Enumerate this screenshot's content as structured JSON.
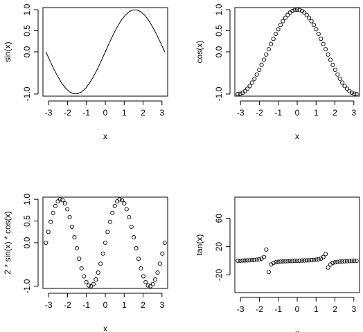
{
  "chart_data": [
    {
      "type": "line",
      "function": "sin(x)",
      "xlabel": "x",
      "ylabel": "sin(x)",
      "xlim": [
        -3.3,
        3.3
      ],
      "ylim": [
        -1.05,
        1.05
      ],
      "xticks": [
        "-3",
        "-2",
        "-1",
        "0",
        "1",
        "2",
        "3"
      ],
      "yticks": [
        "-1.0",
        "0.0",
        "0.5",
        "1.0"
      ],
      "x": [
        -3.14159,
        -2.93216,
        -2.72272,
        -2.51327,
        -2.30383,
        -2.09439,
        -1.88496,
        -1.67552,
        -1.46608,
        -1.25664,
        -1.0472,
        -0.83776,
        -0.62832,
        -0.41888,
        -0.20944,
        0.0,
        0.20944,
        0.41888,
        0.62832,
        0.83776,
        1.0472,
        1.25664,
        1.46608,
        1.67552,
        1.88496,
        2.09439,
        2.30383,
        2.51327,
        2.72272,
        2.93216,
        3.14159
      ],
      "y": [
        0.0,
        -0.208,
        -0.407,
        -0.588,
        -0.743,
        -0.866,
        -0.951,
        -0.995,
        -0.995,
        -0.951,
        -0.866,
        -0.743,
        -0.588,
        -0.407,
        -0.208,
        0.0,
        0.208,
        0.407,
        0.588,
        0.743,
        0.866,
        0.951,
        0.995,
        0.995,
        0.951,
        0.866,
        0.743,
        0.588,
        0.407,
        0.208,
        0.0
      ]
    },
    {
      "type": "scatter",
      "function": "cos(x)",
      "xlabel": "x",
      "ylabel": "cos(x)",
      "xlim": [
        -3.3,
        3.3
      ],
      "ylim": [
        -1.05,
        1.05
      ],
      "xticks": [
        "-3",
        "-2",
        "-1",
        "0",
        "1",
        "2",
        "3"
      ],
      "yticks": [
        "-1.0",
        "0.0",
        "0.5",
        "1.0"
      ],
      "x": [
        -3.14159,
        -3.01593,
        -2.89027,
        -2.7646,
        -2.63894,
        -2.51327,
        -2.38761,
        -2.26195,
        -2.13628,
        -2.01062,
        -1.88496,
        -1.75929,
        -1.63363,
        -1.50796,
        -1.3823,
        -1.25664,
        -1.13097,
        -1.00531,
        -0.87965,
        -0.75398,
        -0.62832,
        -0.50265,
        -0.37699,
        -0.25133,
        -0.12566,
        0.0,
        0.12566,
        0.25133,
        0.37699,
        0.50265,
        0.62832,
        0.75398,
        0.87965,
        1.00531,
        1.13097,
        1.25664,
        1.3823,
        1.50796,
        1.63363,
        1.75929,
        1.88496,
        2.01062,
        2.13628,
        2.26195,
        2.38761,
        2.51327,
        2.63894,
        2.7646,
        2.89027,
        3.01593,
        3.14159
      ],
      "y": [
        -1.0,
        -0.992,
        -0.969,
        -0.93,
        -0.876,
        -0.809,
        -0.729,
        -0.637,
        -0.536,
        -0.426,
        -0.309,
        -0.187,
        -0.063,
        0.063,
        0.187,
        0.309,
        0.426,
        0.536,
        0.637,
        0.729,
        0.809,
        0.876,
        0.93,
        0.969,
        0.992,
        1.0,
        0.992,
        0.969,
        0.93,
        0.876,
        0.809,
        0.729,
        0.637,
        0.536,
        0.426,
        0.309,
        0.187,
        0.063,
        -0.063,
        -0.187,
        -0.309,
        -0.426,
        -0.536,
        -0.637,
        -0.729,
        -0.809,
        -0.876,
        -0.93,
        -0.969,
        -0.992,
        -1.0
      ]
    },
    {
      "type": "scatter",
      "function": "2 * sin(x) * cos(x)",
      "xlabel": "x",
      "ylabel": "2 * sin(x) * cos(x)",
      "xlim": [
        -3.3,
        3.3
      ],
      "ylim": [
        -1.05,
        1.05
      ],
      "xticks": [
        "-3",
        "-2",
        "-1",
        "0",
        "1",
        "2",
        "3"
      ],
      "yticks": [
        "-1.0",
        "0.0",
        "0.5",
        "1.0"
      ],
      "x": [
        -3.14159,
        -3.01593,
        -2.89027,
        -2.7646,
        -2.63894,
        -2.51327,
        -2.38761,
        -2.26195,
        -2.13628,
        -2.01062,
        -1.88496,
        -1.75929,
        -1.63363,
        -1.50796,
        -1.3823,
        -1.25664,
        -1.13097,
        -1.00531,
        -0.87965,
        -0.75398,
        -0.62832,
        -0.50265,
        -0.37699,
        -0.25133,
        -0.12566,
        0.0,
        0.12566,
        0.25133,
        0.37699,
        0.50265,
        0.62832,
        0.75398,
        0.87965,
        1.00531,
        1.13097,
        1.25664,
        1.3823,
        1.50796,
        1.63363,
        1.75929,
        1.88496,
        2.01062,
        2.13628,
        2.26195,
        2.38761,
        2.51327,
        2.63894,
        2.7646,
        2.89027,
        3.01593,
        3.14159
      ],
      "y": [
        0.0,
        0.249,
        0.482,
        0.685,
        0.844,
        0.951,
        0.998,
        0.982,
        0.905,
        0.771,
        0.588,
        0.368,
        0.125,
        -0.125,
        -0.368,
        -0.588,
        -0.771,
        -0.905,
        -0.982,
        -0.998,
        -0.951,
        -0.844,
        -0.685,
        -0.482,
        -0.249,
        0.0,
        0.249,
        0.482,
        0.685,
        0.844,
        0.951,
        0.998,
        0.982,
        0.905,
        0.771,
        0.588,
        0.368,
        0.125,
        -0.125,
        -0.368,
        -0.588,
        -0.771,
        -0.905,
        -0.982,
        -0.998,
        -0.951,
        -0.844,
        -0.685,
        -0.482,
        -0.249,
        0.0
      ]
    },
    {
      "type": "scatter",
      "function": "tan(x)",
      "xlabel": "x",
      "ylabel": "tan(x)",
      "xlim": [
        -3.3,
        3.3
      ],
      "ylim": [
        -45,
        90
      ],
      "xticks": [
        "-3",
        "-2",
        "-1",
        "0",
        "1",
        "2",
        "3"
      ],
      "yticks": [
        "-20",
        "20",
        "60"
      ],
      "x": [
        -3.14159,
        -3.01593,
        -2.89027,
        -2.7646,
        -2.63894,
        -2.51327,
        -2.38761,
        -2.26195,
        -2.13628,
        -2.01062,
        -1.88496,
        -1.75929,
        -1.63363,
        -1.50796,
        -1.3823,
        -1.25664,
        -1.13097,
        -1.00531,
        -0.87965,
        -0.75398,
        -0.62832,
        -0.50265,
        -0.37699,
        -0.25133,
        -0.12566,
        0.0,
        0.12566,
        0.25133,
        0.37699,
        0.50265,
        0.62832,
        0.75398,
        0.87965,
        1.00531,
        1.13097,
        1.25664,
        1.3823,
        1.50796,
        1.63363,
        1.75929,
        1.88496,
        2.01062,
        2.13628,
        2.26195,
        2.38761,
        2.51327,
        2.63894,
        2.7646,
        2.89027,
        3.01593,
        3.14159
      ],
      "y": [
        0.0,
        0.126,
        0.257,
        0.395,
        0.546,
        0.727,
        0.938,
        1.209,
        1.572,
        2.13,
        3.078,
        5.242,
        15.89,
        -15.89,
        -5.242,
        -3.078,
        -2.13,
        -1.572,
        -1.209,
        -0.938,
        -0.727,
        -0.546,
        -0.395,
        -0.257,
        -0.126,
        0.0,
        0.126,
        0.257,
        0.395,
        0.546,
        0.727,
        0.938,
        1.209,
        1.572,
        2.13,
        3.078,
        5.242,
        9.5,
        -9.5,
        -5.242,
        -3.078,
        -2.13,
        -1.572,
        -1.209,
        -0.938,
        -0.727,
        -0.546,
        -0.395,
        -0.257,
        -0.126,
        0.0
      ]
    }
  ]
}
